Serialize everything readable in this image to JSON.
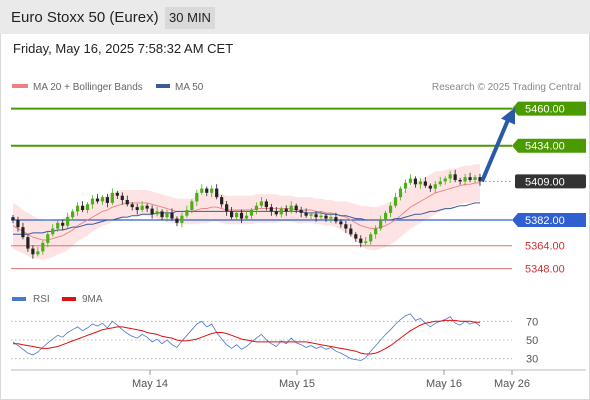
{
  "header": {
    "title": "Euro Stoxx 50 (Eurex)",
    "timeframe": "30 MIN"
  },
  "date_line": "Friday, May 16, 2025 7:58:32 AM CET",
  "legend": {
    "ma20": {
      "label": "MA 20 + Bollinger Bands",
      "color": "#f08080"
    },
    "ma50": {
      "label": "MA 50",
      "color": "#3a5a9a"
    }
  },
  "copyright": "Research © 2025 Trading Central",
  "colors": {
    "bull": "#4caf1a",
    "bear": "#222222",
    "resistance": "#4a9a00",
    "pivot": "#2f5fd0",
    "support": "#e07070",
    "bollinger_fill": "#fde3e3",
    "arrow": "#2a5aa6",
    "rsi": "#4a78d0",
    "rsi_ma": "#dd1111"
  },
  "chart_data": [
    {
      "type": "candlestick",
      "ylim": [
        5340,
        5466
      ],
      "x_tick_labels": [
        "May 14",
        "May 15",
        "May 16",
        "May 26"
      ],
      "levels": [
        {
          "value": 5460,
          "label": "5460.00",
          "kind": "resistance"
        },
        {
          "value": 5434,
          "label": "5434.00",
          "kind": "resistance"
        },
        {
          "value": 5409,
          "label": "5409.00",
          "kind": "last"
        },
        {
          "value": 5382,
          "label": "5382.00",
          "kind": "pivot"
        },
        {
          "value": 5364,
          "label": "5364.00",
          "kind": "support"
        },
        {
          "value": 5348,
          "label": "5348.00",
          "kind": "support"
        }
      ],
      "closes": [
        5382,
        5377,
        5370,
        5362,
        5358,
        5360,
        5366,
        5372,
        5376,
        5380,
        5378,
        5384,
        5388,
        5392,
        5389,
        5393,
        5397,
        5395,
        5398,
        5394,
        5401,
        5399,
        5396,
        5393,
        5391,
        5389,
        5392,
        5390,
        5386,
        5388,
        5384,
        5387,
        5383,
        5380,
        5385,
        5389,
        5395,
        5401,
        5404,
        5401,
        5404,
        5398,
        5393,
        5388,
        5384,
        5387,
        5383,
        5385,
        5389,
        5392,
        5395,
        5391,
        5388,
        5386,
        5390,
        5388,
        5392,
        5389,
        5387,
        5385,
        5386,
        5384,
        5385,
        5383,
        5384,
        5381,
        5379,
        5376,
        5372,
        5369,
        5366,
        5367,
        5372,
        5376,
        5382,
        5387,
        5392,
        5398,
        5404,
        5408,
        5411,
        5407,
        5409,
        5406,
        5404,
        5407,
        5409,
        5411,
        5414,
        5410,
        5409,
        5412,
        5410,
        5412,
        5409
      ],
      "forecast": {
        "from": 5409,
        "to": 5460
      },
      "ma20": [
        5378,
        5376,
        5374,
        5372,
        5370,
        5369,
        5368,
        5368,
        5369,
        5370,
        5371,
        5373,
        5375,
        5378,
        5380,
        5382,
        5384,
        5386,
        5388,
        5389,
        5391,
        5392,
        5393,
        5394,
        5394,
        5394,
        5394,
        5394,
        5393,
        5392,
        5391,
        5390,
        5389,
        5388,
        5388,
        5388,
        5388,
        5389,
        5390,
        5390,
        5391,
        5391,
        5390,
        5389,
        5389,
        5389,
        5389,
        5389,
        5389,
        5390,
        5390,
        5390,
        5390,
        5390,
        5390,
        5390,
        5390,
        5389,
        5389,
        5389,
        5389,
        5388,
        5388,
        5387,
        5387,
        5386,
        5385,
        5384,
        5382,
        5380,
        5378,
        5377,
        5376,
        5376,
        5377,
        5378,
        5380,
        5382,
        5385,
        5388,
        5391,
        5393,
        5395,
        5397,
        5399,
        5401,
        5402,
        5403,
        5404,
        5405,
        5406,
        5407,
        5407,
        5408,
        5408
      ],
      "ma50": [
        5372,
        5372,
        5372,
        5372,
        5373,
        5373,
        5373,
        5374,
        5374,
        5375,
        5375,
        5376,
        5377,
        5377,
        5378,
        5379,
        5379,
        5380,
        5381,
        5382,
        5382,
        5383,
        5384,
        5384,
        5385,
        5385,
        5386,
        5386,
        5386,
        5387,
        5387,
        5387,
        5387,
        5388,
        5388,
        5388,
        5388,
        5388,
        5388,
        5388,
        5388,
        5388,
        5388,
        5388,
        5388,
        5388,
        5388,
        5388,
        5388,
        5388,
        5388,
        5388,
        5388,
        5388,
        5388,
        5388,
        5388,
        5388,
        5388,
        5387,
        5387,
        5387,
        5387,
        5386,
        5386,
        5386,
        5385,
        5385,
        5384,
        5383,
        5383,
        5382,
        5382,
        5382,
        5382,
        5382,
        5382,
        5383,
        5383,
        5384,
        5385,
        5386,
        5386,
        5387,
        5388,
        5388,
        5389,
        5390,
        5390,
        5391,
        5392,
        5392,
        5393,
        5394,
        5394
      ],
      "bb_width": [
        16,
        16,
        15,
        15,
        15,
        14,
        14,
        13,
        13,
        12,
        12,
        12,
        11,
        11,
        11,
        11,
        10,
        10,
        10,
        10,
        10,
        10,
        10,
        9,
        9,
        9,
        9,
        9,
        9,
        9,
        9,
        9,
        9,
        9,
        9,
        9,
        9,
        10,
        10,
        10,
        10,
        10,
        10,
        10,
        10,
        10,
        10,
        10,
        10,
        10,
        10,
        10,
        10,
        10,
        9,
        9,
        9,
        9,
        9,
        9,
        9,
        9,
        9,
        9,
        9,
        9,
        10,
        11,
        12,
        13,
        14,
        15,
        15,
        15,
        15,
        15,
        15,
        15,
        15,
        15,
        15,
        15,
        15,
        15,
        15,
        15,
        14,
        14,
        14,
        13,
        13,
        13,
        13,
        13,
        13
      ]
    },
    {
      "type": "line",
      "series": [
        {
          "name": "RSI"
        },
        {
          "name": "9MA"
        }
      ],
      "ylim": [
        20,
        80
      ],
      "y_tick_labels": [
        "70",
        "50",
        "30"
      ],
      "rsi": [
        48,
        44,
        40,
        36,
        34,
        37,
        42,
        47,
        51,
        55,
        53,
        58,
        61,
        64,
        60,
        63,
        67,
        65,
        68,
        63,
        70,
        66,
        61,
        57,
        54,
        52,
        56,
        53,
        48,
        51,
        46,
        50,
        45,
        42,
        49,
        55,
        61,
        67,
        70,
        64,
        67,
        58,
        51,
        45,
        41,
        45,
        40,
        43,
        48,
        52,
        56,
        50,
        46,
        43,
        49,
        46,
        52,
        47,
        45,
        42,
        44,
        41,
        43,
        40,
        42,
        38,
        36,
        33,
        30,
        29,
        28,
        31,
        38,
        44,
        50,
        56,
        61,
        67,
        72,
        76,
        78,
        71,
        73,
        68,
        64,
        68,
        70,
        72,
        75,
        68,
        66,
        70,
        67,
        69,
        65
      ],
      "rsi_ma": [
        46,
        46,
        45,
        44,
        43,
        42,
        41,
        41,
        42,
        43,
        45,
        47,
        49,
        51,
        53,
        55,
        57,
        59,
        61,
        62,
        63,
        64,
        64,
        63,
        62,
        61,
        60,
        58,
        57,
        56,
        54,
        53,
        52,
        50,
        49,
        49,
        50,
        51,
        53,
        55,
        57,
        58,
        58,
        57,
        55,
        53,
        51,
        50,
        49,
        48,
        48,
        48,
        48,
        48,
        48,
        48,
        48,
        48,
        48,
        48,
        47,
        46,
        45,
        44,
        43,
        42,
        41,
        40,
        39,
        38,
        36,
        35,
        35,
        36,
        38,
        41,
        44,
        48,
        52,
        56,
        60,
        63,
        66,
        68,
        69,
        70,
        70,
        71,
        71,
        71,
        70,
        70,
        70,
        69,
        69
      ]
    }
  ]
}
